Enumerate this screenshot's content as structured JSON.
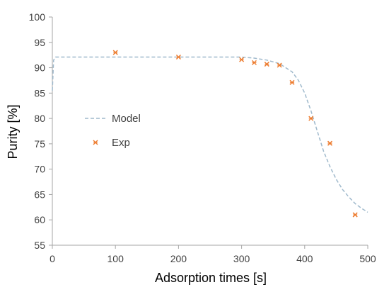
{
  "chart_data": {
    "type": "line",
    "xlabel": "Adsorption times [s]",
    "ylabel": "Purity [%]",
    "xlim": [
      0,
      500
    ],
    "ylim": [
      55,
      100
    ],
    "xticks": [
      "0",
      "100",
      "200",
      "300",
      "400",
      "500"
    ],
    "yticks": [
      "55",
      "60",
      "65",
      "70",
      "75",
      "80",
      "85",
      "90",
      "95",
      "100"
    ],
    "grid": false,
    "legend_position": "left",
    "series": [
      {
        "name": "Model",
        "style": "dashed-line",
        "color": "#9fb9cc",
        "x": [
          0,
          2,
          5,
          50,
          100,
          150,
          200,
          250,
          300,
          320,
          340,
          360,
          380,
          390,
          400,
          410,
          420,
          430,
          440,
          450,
          460,
          470,
          480,
          490,
          500
        ],
        "y": [
          85.5,
          91.5,
          92.1,
          92.1,
          92.1,
          92.1,
          92.1,
          92.1,
          92.1,
          91.9,
          91.5,
          90.8,
          89.2,
          87.5,
          85.0,
          81.5,
          77.5,
          73.5,
          70.5,
          68.0,
          66.0,
          64.5,
          63.2,
          62.3,
          61.5
        ]
      },
      {
        "name": "Exp",
        "style": "x-marker",
        "color": "#ed7d31",
        "x": [
          100,
          200,
          300,
          320,
          340,
          360,
          380,
          410,
          440,
          480
        ],
        "y": [
          93.0,
          92.1,
          91.6,
          91.0,
          90.7,
          90.5,
          87.1,
          80.0,
          75.1,
          61.0
        ]
      }
    ]
  }
}
